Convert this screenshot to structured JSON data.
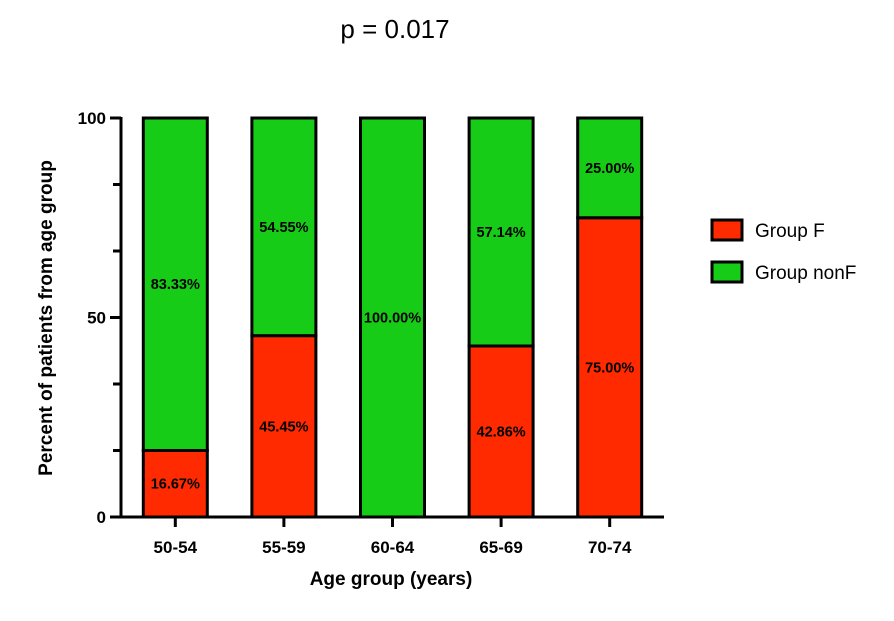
{
  "chart_data": {
    "type": "bar",
    "stacked": true,
    "title": "p = 0.017",
    "xlabel": "Age group (years)",
    "ylabel": "Percent of patients from age group",
    "ylim": [
      0,
      100
    ],
    "yticks": [
      0,
      50,
      100
    ],
    "categories": [
      "50-54",
      "55-59",
      "60-64",
      "65-69",
      "70-74"
    ],
    "series": [
      {
        "name": "Group F",
        "color": "#ff2a00",
        "values": [
          16.67,
          45.45,
          0,
          42.86,
          75.0
        ],
        "labels": [
          "16.67%",
          "45.45%",
          "",
          "42.86%",
          "75.00%"
        ]
      },
      {
        "name": "Group nonF",
        "color": "#17cc17",
        "values": [
          83.33,
          54.55,
          100.0,
          57.14,
          25.0
        ],
        "labels": [
          "83.33%",
          "54.55%",
          "100.00%",
          "57.14%",
          "25.00%"
        ]
      }
    ],
    "legend_position": "right",
    "grid": false
  }
}
